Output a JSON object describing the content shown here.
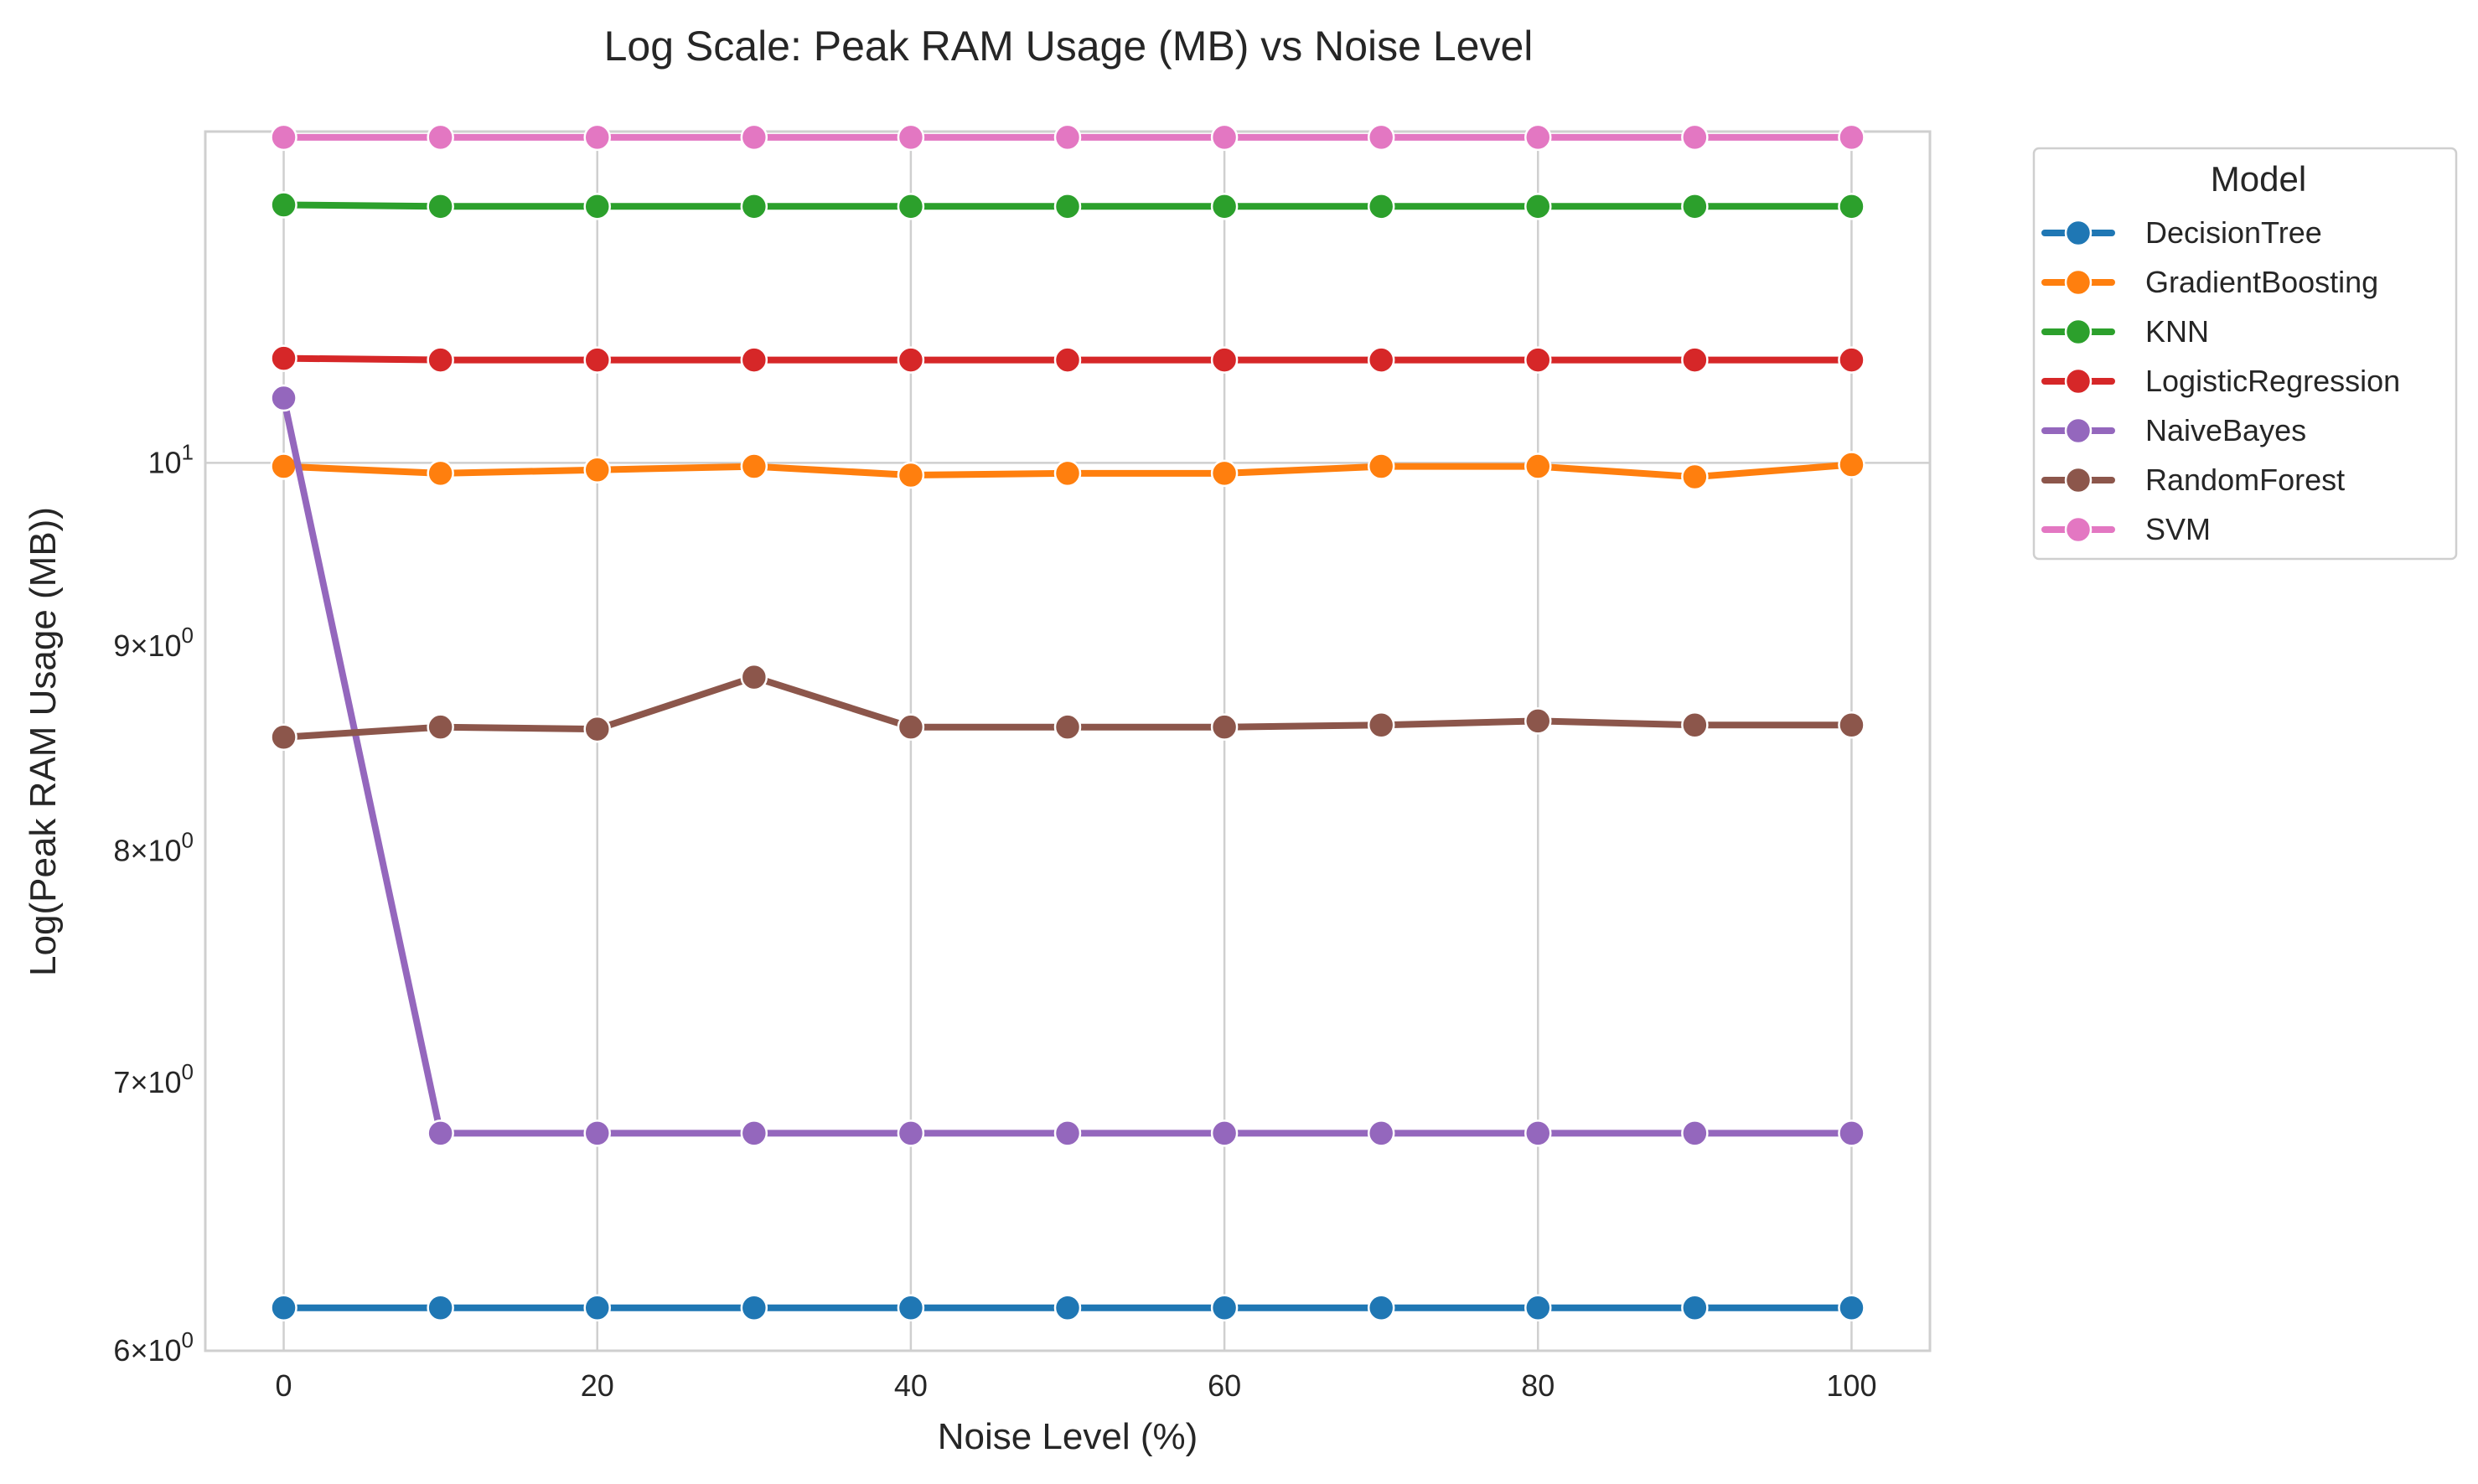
{
  "chart_data": {
    "type": "line",
    "title": "Log Scale: Peak RAM Usage (MB) vs Noise Level",
    "xlabel": "Noise Level (%)",
    "ylabel": "Log(Peak RAM Usage (MB))",
    "yscale": "log",
    "xlim": [
      -5,
      105
    ],
    "ylim": [
      6.0,
      12.1
    ],
    "x": [
      0,
      10,
      20,
      30,
      40,
      50,
      60,
      70,
      80,
      90,
      100
    ],
    "xticks": [
      0,
      20,
      40,
      60,
      80,
      100
    ],
    "xtick_labels": [
      "0",
      "20",
      "40",
      "60",
      "80",
      "100"
    ],
    "yticks": [
      {
        "value": 6,
        "mantissa": "6",
        "times": "×",
        "base": "10",
        "exponent": "0"
      },
      {
        "value": 7,
        "mantissa": "7",
        "times": "×",
        "base": "10",
        "exponent": "0"
      },
      {
        "value": 8,
        "mantissa": "8",
        "times": "×",
        "base": "10",
        "exponent": "0"
      },
      {
        "value": 9,
        "mantissa": "9",
        "times": "×",
        "base": "10",
        "exponent": "0"
      },
      {
        "value": 10,
        "mantissa": "",
        "times": "",
        "base": "10",
        "exponent": "1"
      }
    ],
    "grid": true,
    "legend": {
      "title": "Model",
      "placement": "outside-right-top"
    },
    "series": [
      {
        "name": "DecisionTree",
        "color": "#1f77b4",
        "values": [
          6.15,
          6.15,
          6.15,
          6.15,
          6.15,
          6.15,
          6.15,
          6.15,
          6.15,
          6.15,
          6.15
        ]
      },
      {
        "name": "GradientBoosting",
        "color": "#ff7f0e",
        "values": [
          9.98,
          9.94,
          9.96,
          9.98,
          9.93,
          9.94,
          9.94,
          9.98,
          9.98,
          9.92,
          9.99
        ]
      },
      {
        "name": "KNN",
        "color": "#2ca02c",
        "values": [
          11.6,
          11.59,
          11.59,
          11.59,
          11.59,
          11.59,
          11.59,
          11.59,
          11.59,
          11.59,
          11.59
        ]
      },
      {
        "name": "LogisticRegression",
        "color": "#d62728",
        "values": [
          10.62,
          10.61,
          10.61,
          10.61,
          10.61,
          10.61,
          10.61,
          10.61,
          10.61,
          10.61,
          10.61
        ]
      },
      {
        "name": "NaiveBayes",
        "color": "#9467bd",
        "values": [
          10.38,
          6.8,
          6.8,
          6.8,
          6.8,
          6.8,
          6.8,
          6.8,
          6.8,
          6.8,
          6.8
        ]
      },
      {
        "name": "RandomForest",
        "color": "#8c564b",
        "values": [
          8.54,
          8.59,
          8.58,
          8.84,
          8.59,
          8.59,
          8.59,
          8.6,
          8.62,
          8.6,
          8.6
        ]
      },
      {
        "name": "SVM",
        "color": "#e377c2",
        "values": [
          12.06,
          12.06,
          12.06,
          12.06,
          12.06,
          12.06,
          12.06,
          12.06,
          12.06,
          12.06,
          12.06
        ]
      }
    ]
  }
}
